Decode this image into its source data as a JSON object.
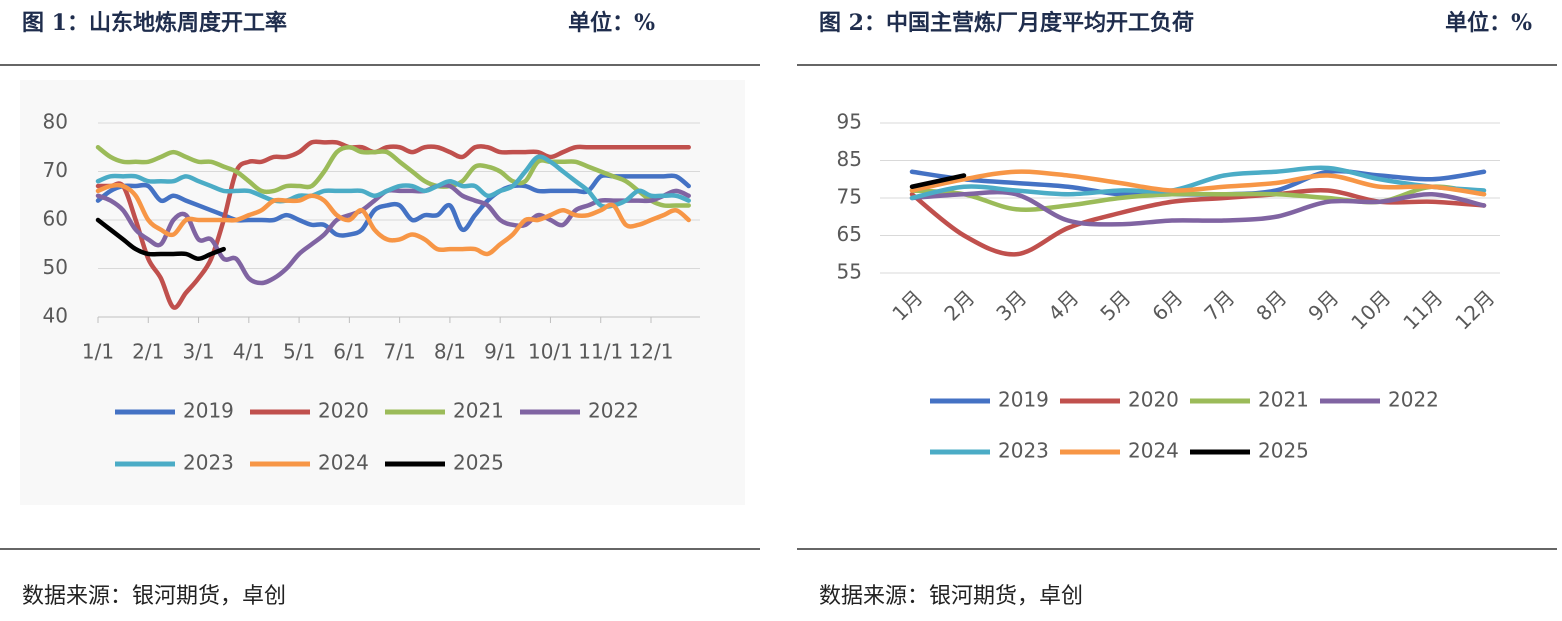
{
  "chart_data": [
    {
      "type": "line",
      "title": "图 1：山东地炼周度开工率",
      "unit": "单位：%",
      "source": "数据来源：银河期货，卓创",
      "categories": [
        "1/1",
        null,
        null,
        null,
        "2/1",
        null,
        null,
        null,
        "3/1",
        null,
        null,
        null,
        "4/1",
        null,
        null,
        null,
        "5/1",
        null,
        null,
        null,
        "6/1",
        null,
        null,
        null,
        "7/1",
        null,
        null,
        null,
        "8/1",
        null,
        null,
        null,
        "9/1",
        null,
        null,
        null,
        "10/1",
        null,
        null,
        null,
        "11/1",
        null,
        null,
        null,
        "12/1",
        null,
        null,
        null
      ],
      "ylim": [
        40,
        80
      ],
      "yticks": [
        40,
        50,
        60,
        70,
        80
      ],
      "grid": true,
      "series": [
        {
          "name": "2019",
          "color": "#4472c4",
          "values": [
            64,
            66,
            67,
            67,
            67,
            64,
            65,
            64,
            63,
            62,
            61,
            60,
            60,
            60,
            60,
            61,
            60,
            59,
            59,
            57,
            57,
            58,
            62,
            63,
            63,
            60,
            61,
            61,
            63,
            58,
            61,
            64,
            66,
            67,
            67,
            66,
            66,
            66,
            66,
            66,
            69,
            69,
            69,
            69,
            69,
            69,
            69,
            67
          ]
        },
        {
          "name": "2020",
          "color": "#c0504d",
          "values": [
            67,
            67,
            67,
            60,
            52,
            48,
            42,
            45,
            48,
            52,
            60,
            70,
            72,
            72,
            73,
            73,
            74,
            76,
            76,
            76,
            75,
            75,
            74,
            75,
            75,
            74,
            75,
            75,
            74,
            73,
            75,
            75,
            74,
            74,
            74,
            74,
            73,
            74,
            75,
            75,
            75,
            75,
            75,
            75,
            75,
            75,
            75,
            75
          ]
        },
        {
          "name": "2021",
          "color": "#9bbb59",
          "values": [
            75,
            73,
            72,
            72,
            72,
            73,
            74,
            73,
            72,
            72,
            71,
            70,
            68,
            66,
            66,
            67,
            67,
            67,
            70,
            74,
            75,
            74,
            74,
            74,
            72,
            70,
            68,
            67,
            67,
            68,
            71,
            71,
            70,
            68,
            68,
            72,
            72,
            72,
            72,
            71,
            70,
            69,
            68,
            66,
            64,
            63,
            63,
            63
          ]
        },
        {
          "name": "2022",
          "color": "#8064a2",
          "values": [
            65,
            64,
            62,
            58,
            56,
            55,
            60,
            61,
            56,
            56,
            52,
            52,
            48,
            47,
            48,
            50,
            53,
            55,
            57,
            60,
            61,
            62,
            64,
            66,
            66,
            66,
            66,
            67,
            67,
            65,
            64,
            63,
            60,
            59,
            59,
            61,
            60,
            59,
            62,
            63,
            64,
            64,
            64,
            64,
            64,
            65,
            66,
            65
          ]
        },
        {
          "name": "2023",
          "color": "#4bacc6",
          "values": [
            68,
            69,
            69,
            69,
            68,
            68,
            68,
            69,
            68,
            67,
            66,
            66,
            66,
            65,
            64,
            64,
            65,
            65,
            66,
            66,
            66,
            66,
            65,
            66,
            67,
            67,
            66,
            67,
            68,
            67,
            67,
            65,
            66,
            67,
            70,
            73,
            72,
            70,
            68,
            66,
            63,
            63,
            64,
            66,
            65,
            65,
            65,
            64
          ]
        },
        {
          "name": "2024",
          "color": "#f79646",
          "values": [
            66,
            67,
            67,
            65,
            60,
            58,
            57,
            60,
            60,
            60,
            60,
            60,
            61,
            62,
            64,
            64,
            64,
            65,
            64,
            61,
            60,
            62,
            58,
            56,
            56,
            57,
            56,
            54,
            54,
            54,
            54,
            53,
            55,
            57,
            60,
            60,
            61,
            62,
            61,
            61,
            62,
            63,
            59,
            59,
            60,
            61,
            62,
            60
          ]
        },
        {
          "name": "2025",
          "color": "#000000",
          "values": [
            60,
            58,
            56,
            54,
            53,
            53,
            53,
            53,
            52,
            53,
            54,
            null,
            null,
            null,
            null,
            null,
            null,
            null,
            null,
            null,
            null,
            null,
            null,
            null,
            null,
            null,
            null,
            null,
            null,
            null,
            null,
            null,
            null,
            null,
            null,
            null,
            null,
            null,
            null,
            null,
            null,
            null,
            null,
            null,
            null,
            null,
            null,
            null
          ]
        }
      ]
    },
    {
      "type": "line",
      "title": "图 2：中国主营炼厂月度平均开工负荷",
      "unit": "单位：%",
      "source": "数据来源：银河期货，卓创",
      "categories": [
        "1月",
        "2月",
        "3月",
        "4月",
        "5月",
        "6月",
        "7月",
        "8月",
        "9月",
        "10月",
        "11月",
        "12月"
      ],
      "ylim": [
        55,
        95
      ],
      "yticks": [
        55,
        65,
        75,
        85,
        95
      ],
      "grid": true,
      "series": [
        {
          "name": "2019",
          "color": "#4472c4",
          "values": [
            82,
            80,
            79,
            78,
            76,
            76,
            76,
            77,
            82,
            81,
            80,
            82
          ]
        },
        {
          "name": "2020",
          "color": "#c0504d",
          "values": [
            76,
            65,
            60,
            67,
            71,
            74,
            75,
            76,
            77,
            74,
            74,
            73
          ]
        },
        {
          "name": "2021",
          "color": "#9bbb59",
          "values": [
            77,
            76,
            72,
            73,
            75,
            76,
            76,
            76,
            75,
            74,
            78,
            76
          ]
        },
        {
          "name": "2022",
          "color": "#8064a2",
          "values": [
            75,
            76,
            76,
            69,
            68,
            69,
            69,
            70,
            74,
            74,
            76,
            73
          ]
        },
        {
          "name": "2023",
          "color": "#4bacc6",
          "values": [
            75,
            78,
            77,
            76,
            77,
            77,
            81,
            82,
            83,
            80,
            78,
            77
          ]
        },
        {
          "name": "2024",
          "color": "#f79646",
          "values": [
            77,
            80,
            82,
            81,
            79,
            77,
            78,
            79,
            81,
            78,
            78,
            76
          ]
        },
        {
          "name": "2025",
          "color": "#000000",
          "values": [
            78,
            81,
            null,
            null,
            null,
            null,
            null,
            null,
            null,
            null,
            null,
            null
          ]
        }
      ]
    }
  ]
}
